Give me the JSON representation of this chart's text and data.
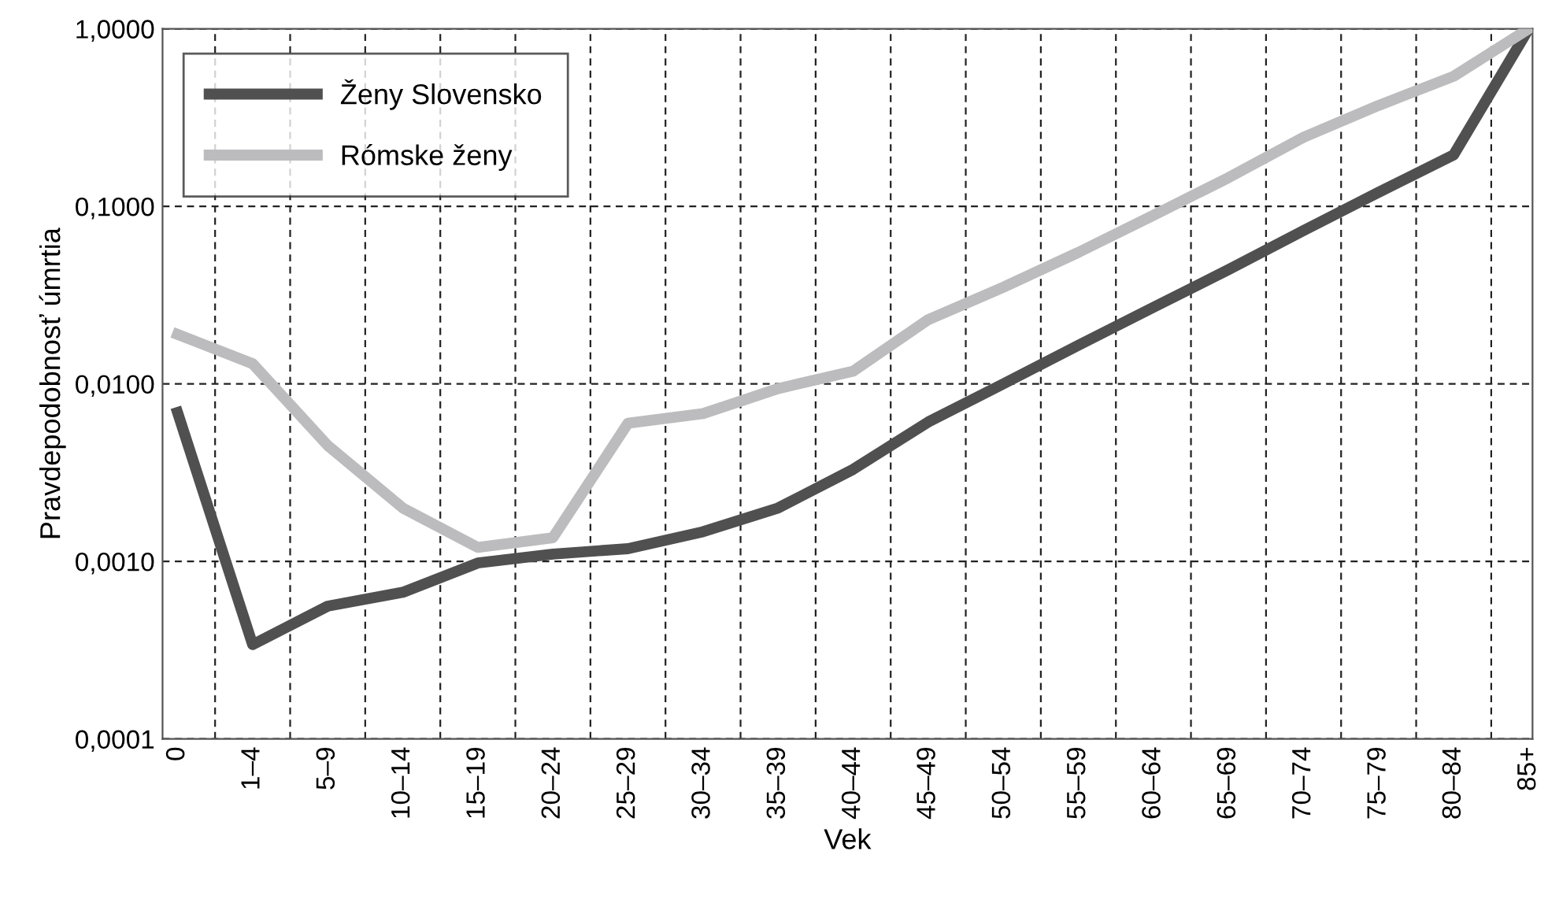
{
  "chart_data": {
    "type": "line",
    "xlabel": "Vek",
    "ylabel": "Pravdepodobnosť úmrtia",
    "log": "y",
    "grid": true,
    "legend": "top left",
    "line_style": "solid",
    "marker": "none",
    "categories": [
      "0",
      "1–4",
      "5–9",
      "10–14",
      "15–19",
      "20–24",
      "25–29",
      "30–34",
      "35–39",
      "40–44",
      "45–49",
      "50–54",
      "55–59",
      "60–64",
      "65–69",
      "70–74",
      "75–79",
      "80–84",
      "85+"
    ],
    "ylim": [
      0.0001,
      1
    ],
    "yticks": [
      {
        "value": 0.0001,
        "label": "0,0001"
      },
      {
        "value": 0.001,
        "label": "0,0010"
      },
      {
        "value": 0.01,
        "label": "0,0100"
      },
      {
        "value": 0.1,
        "label": "0,1000"
      },
      {
        "value": 1,
        "label": "1,0000"
      }
    ],
    "series": [
      {
        "name": "Ženy Slovensko",
        "color": "#505050",
        "values": [
          0.0069,
          0.00034,
          0.00056,
          0.00067,
          0.00098,
          0.0011,
          0.00118,
          0.00147,
          0.002,
          0.0033,
          0.0061,
          0.01,
          0.0165,
          0.027,
          0.044,
          0.073,
          0.12,
          0.195,
          1.0
        ]
      },
      {
        "name": "Rómske ženy",
        "color": "#bcbcbe",
        "values": [
          0.019,
          0.013,
          0.0045,
          0.002,
          0.0012,
          0.00136,
          0.006,
          0.0068,
          0.0094,
          0.0118,
          0.023,
          0.035,
          0.055,
          0.089,
          0.145,
          0.245,
          0.37,
          0.54,
          1.0
        ]
      }
    ]
  }
}
